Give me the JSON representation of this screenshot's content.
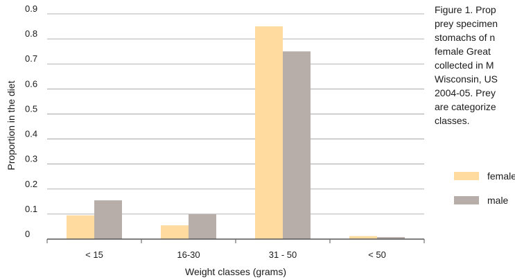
{
  "caption": "Figure 1. Prop\nprey specimen\nstomachs of n\nfemale Great\ncollected in M\nWisconsin, US\n2004-05. Prey\nare categorize\nclasses.",
  "chart_data": {
    "type": "bar",
    "title": "",
    "xlabel": "Weight classes (grams)",
    "ylabel": "Proportion in the diet",
    "ylim": [
      0,
      0.9
    ],
    "yticks": [
      0,
      0.1,
      0.2,
      0.3,
      0.4,
      0.5,
      0.6,
      0.7,
      0.8,
      0.9
    ],
    "ytick_labels": [
      "0",
      "0.1",
      "0.2",
      "0.3",
      "0.4",
      "0.5",
      "0.6",
      "0.7",
      "0.8",
      "0.9"
    ],
    "grid": true,
    "legend_position": "right",
    "categories": [
      "< 15",
      "16-30",
      "31 - 50",
      "< 50"
    ],
    "series": [
      {
        "name": "female",
        "color": "#ffdba0",
        "values": [
          0.095,
          0.055,
          0.85,
          0.012
        ]
      },
      {
        "name": "male",
        "color": "#b7aeaa",
        "values": [
          0.155,
          0.1,
          0.75,
          0.008
        ]
      }
    ]
  }
}
